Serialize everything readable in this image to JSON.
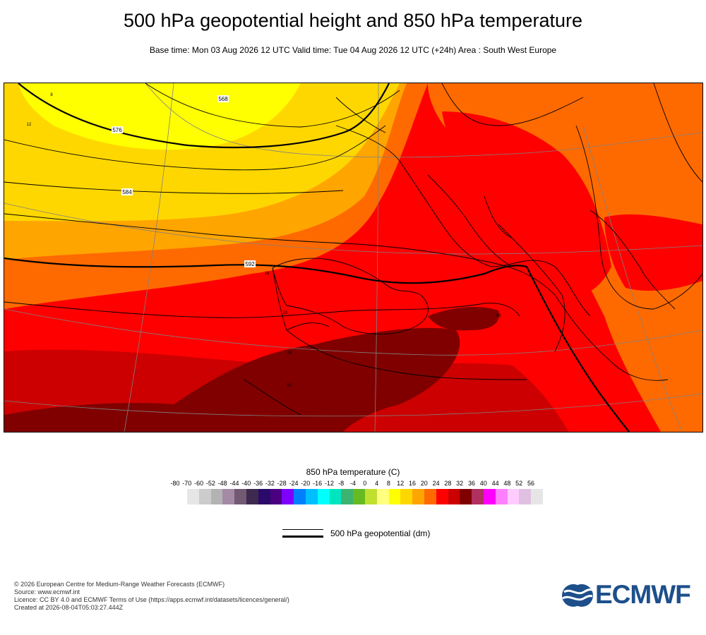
{
  "header": {
    "title": "500 hPa geopotential height and 850 hPa temperature",
    "subtitle": "Base time: Mon 03 Aug 2026 12 UTC Valid time: Tue 04 Aug 2026 12 UTC (+24h) Area : South West Europe"
  },
  "map": {
    "contour_labels": [
      "568",
      "576",
      "584",
      "592"
    ],
    "temperature_labels": [
      "8",
      "12",
      "16",
      "20",
      "24",
      "28",
      "32"
    ],
    "colors": {
      "fill_12": "#ffd700",
      "fill_16": "#ffa500",
      "fill_20": "#ff6a00",
      "fill_24": "#ff0000",
      "fill_28": "#cc0000",
      "fill_32": "#800000",
      "fill_8": "#ffff00",
      "coast": "#000000",
      "graticule": "#808080"
    }
  },
  "legend": {
    "title": "850 hPa temperature (C)",
    "ticks": [
      "-80",
      "-70",
      "-60",
      "-52",
      "-48",
      "-44",
      "-40",
      "-36",
      "-32",
      "-28",
      "-24",
      "-20",
      "-16",
      "-12",
      "-8",
      "-4",
      "0",
      "4",
      "8",
      "12",
      "16",
      "20",
      "24",
      "28",
      "32",
      "36",
      "40",
      "44",
      "48",
      "52",
      "56"
    ],
    "colors": [
      "#e6e6e6",
      "#cccccc",
      "#b3b3b3",
      "#a48aa4",
      "#725a72",
      "#3e2a4e",
      "#2a0a6a",
      "#4b0082",
      "#7f00ff",
      "#0080ff",
      "#00bfff",
      "#00ffff",
      "#00e5c0",
      "#3cb371",
      "#66bb22",
      "#c0e030",
      "#ffff80",
      "#ffff00",
      "#ffd700",
      "#ffa500",
      "#ff6a00",
      "#ff0000",
      "#cc0000",
      "#800000",
      "#b03060",
      "#ff00ff",
      "#ff80ff",
      "#ffccff",
      "#e0c0e0",
      "#e6e6e6"
    ],
    "geopotential_label": "500 hPa geopotential (dm)"
  },
  "footer": {
    "copyright": "© 2026 European Centre for Medium-Range Weather Forecasts (ECMWF)",
    "source": "Source: www.ecmwf.int",
    "licence": "Licence: CC BY 4.0 and ECMWF Terms of Use (https://apps.ecmwf.int/datasets/licences/general/)",
    "created": "Created at 2026-08-04T05:03:27.444Z"
  },
  "logo": {
    "text": "ECMWF",
    "color": "#1d4f8b"
  }
}
